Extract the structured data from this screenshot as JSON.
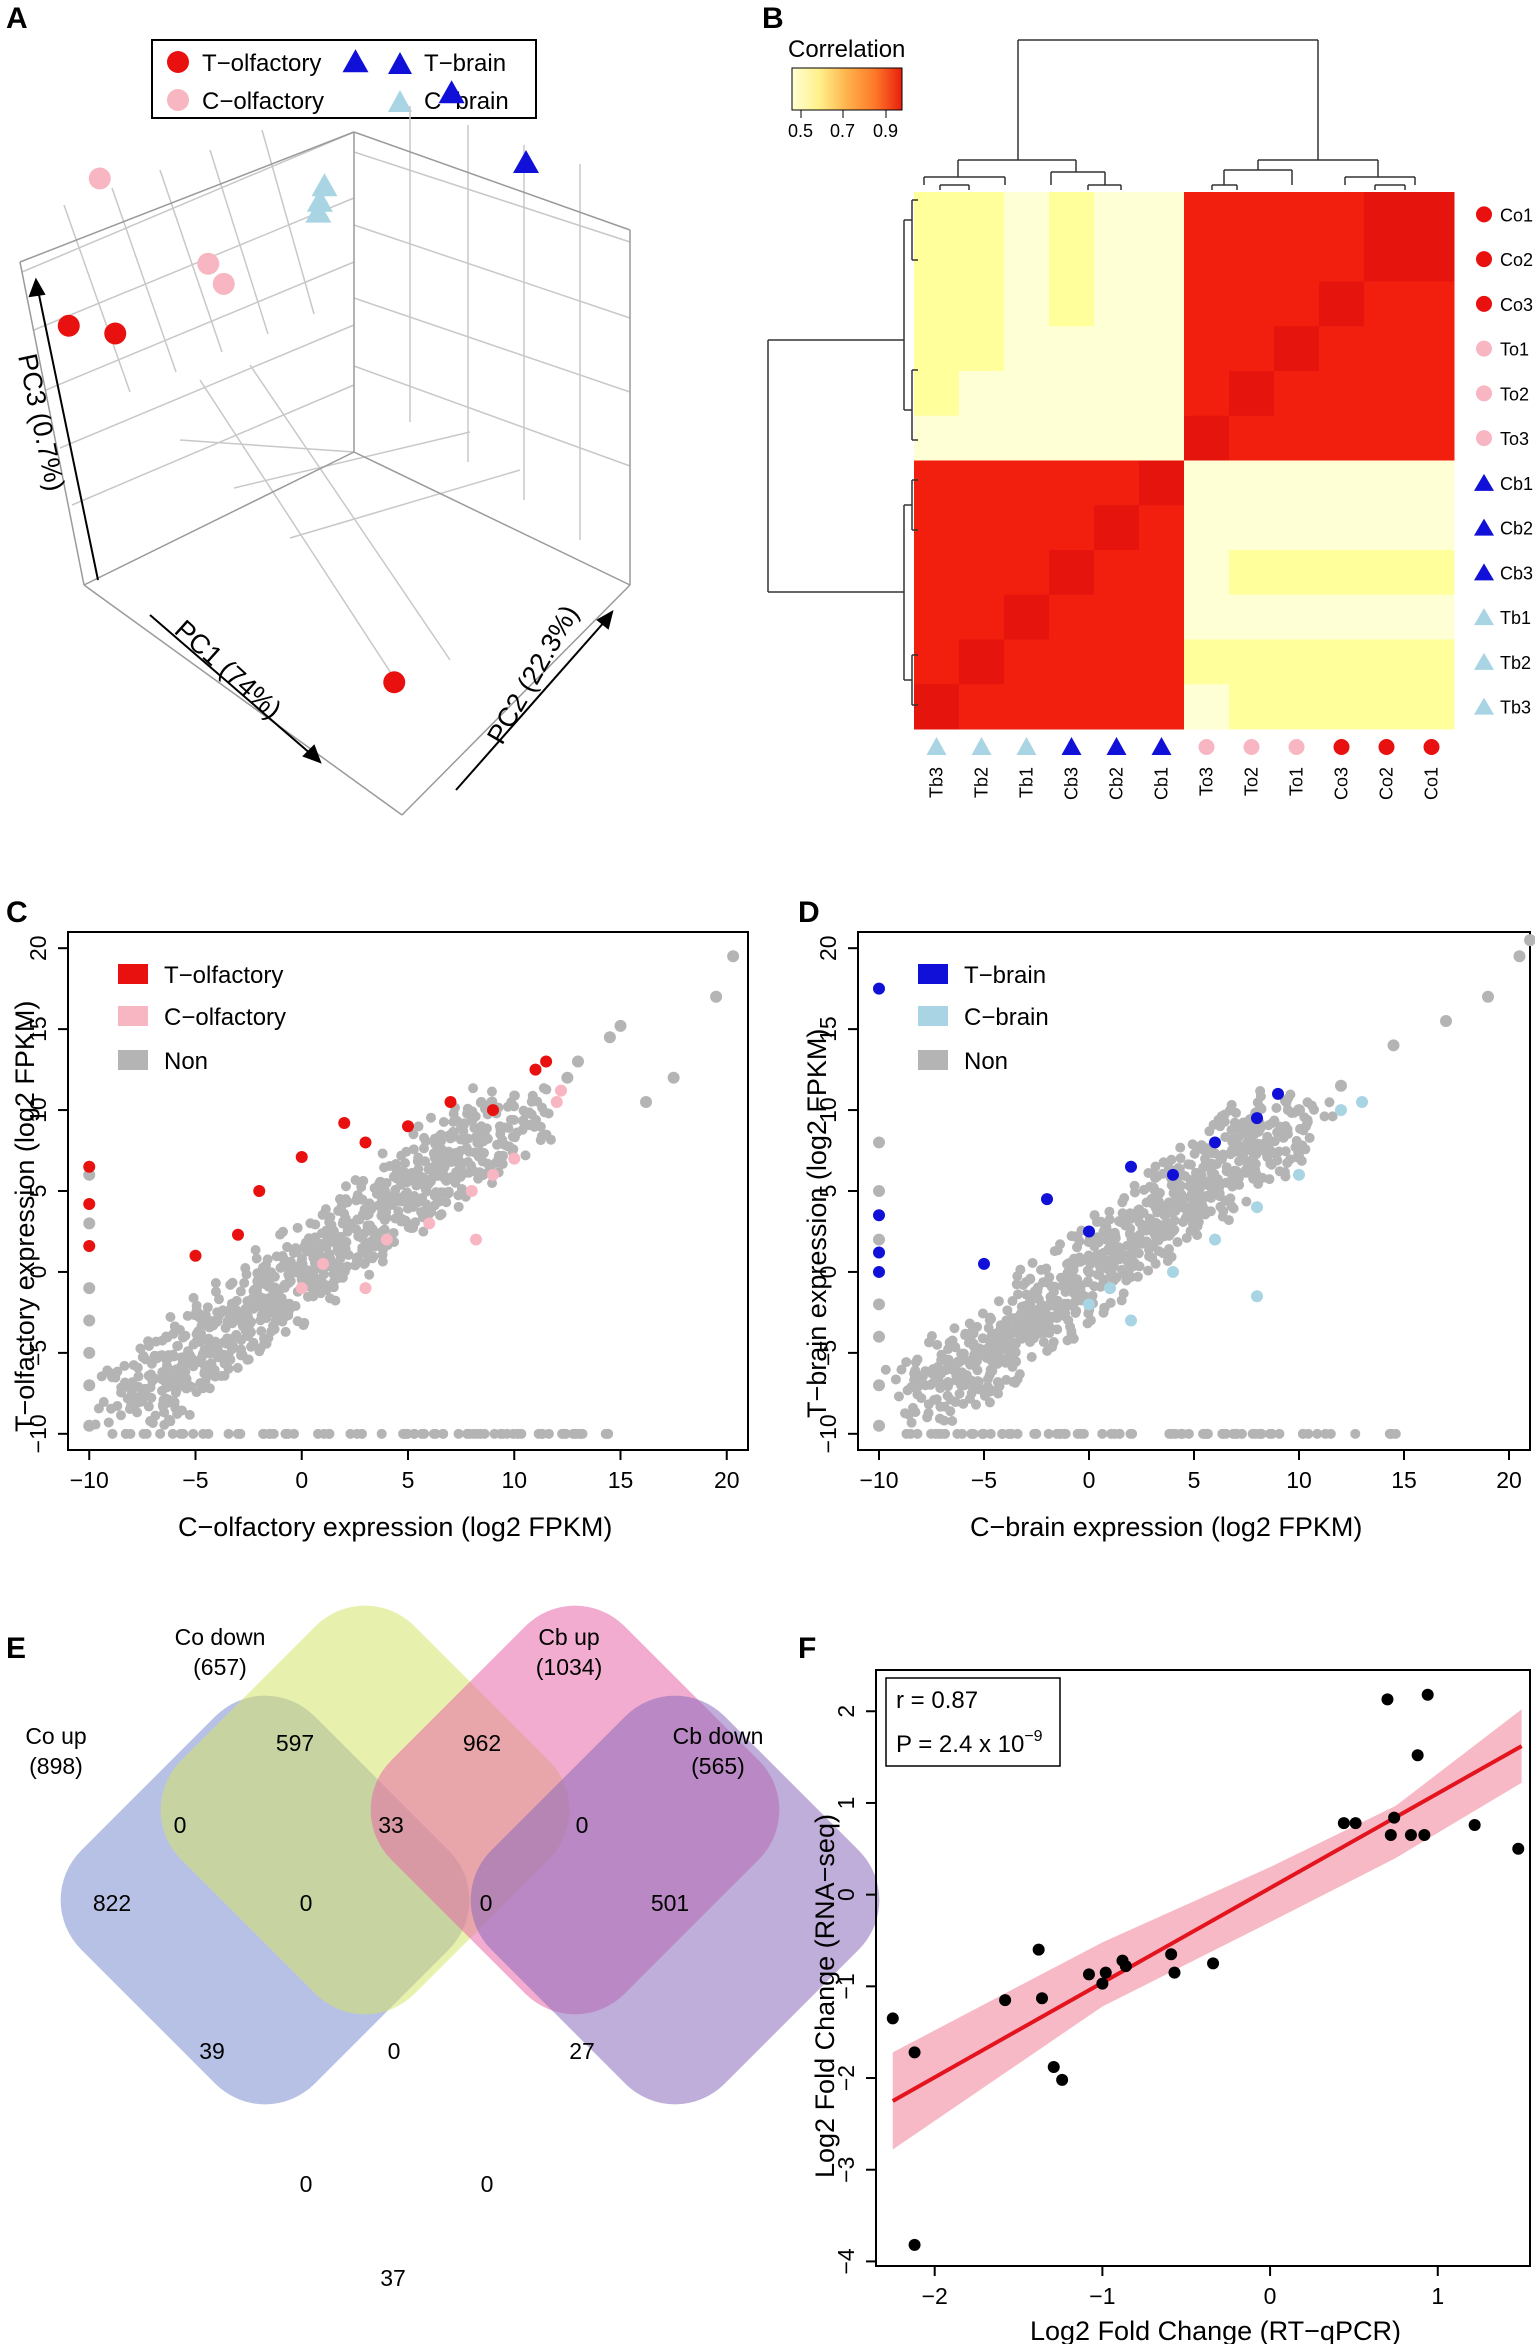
{
  "colors": {
    "t_olfactory": "#e8110f",
    "c_olfactory": "#f7b6c2",
    "t_brain": "#1010d8",
    "c_brain": "#a8d4e3",
    "non": "#b4b4b4",
    "fit_line": "#e3141e",
    "fit_band": "#f7b9c6"
  },
  "chart_data": [
    {
      "panel": "A",
      "type": "scatter",
      "title": "",
      "axes": [
        "PC1 (74%)",
        "PC2 (22.3%)",
        "PC3 (0.7%)"
      ],
      "legend": [
        {
          "label": "T−olfactory",
          "color": "#e8110f",
          "marker": "circle"
        },
        {
          "label": "C−olfactory",
          "color": "#f7b6c2",
          "marker": "circle"
        },
        {
          "label": "T−brain",
          "color": "#1010d8",
          "marker": "triangle"
        },
        {
          "label": "C−brain",
          "color": "#a8d4e3",
          "marker": "triangle"
        }
      ],
      "legend_position": "top",
      "series": [
        {
          "name": "T−olfactory",
          "projected_points": [
            [
              -1.75,
              0.35
            ],
            [
              -1.45,
              0.3
            ],
            [
              0.35,
              -1.95
            ]
          ]
        },
        {
          "name": "C−olfactory",
          "projected_points": [
            [
              -1.55,
              1.3
            ],
            [
              -0.85,
              0.75
            ],
            [
              -0.75,
              0.62
            ]
          ]
        },
        {
          "name": "T−brain",
          "projected_points": [
            [
              0.1,
              2.05
            ],
            [
              0.72,
              1.85
            ],
            [
              1.2,
              1.4
            ]
          ]
        },
        {
          "name": "C−brain",
          "projected_points": [
            [
              -0.1,
              1.25
            ],
            [
              -0.13,
              1.15
            ],
            [
              -0.14,
              1.08
            ]
          ]
        }
      ]
    },
    {
      "panel": "B",
      "type": "heatmap",
      "title": "Correlation",
      "color_key": {
        "ticks": [
          "0.5",
          "0.7",
          "0.9"
        ],
        "range": [
          0.5,
          0.95
        ],
        "colors": [
          "#ffffd4",
          "#fff08a",
          "#feb24c",
          "#fd7a2a",
          "#e8200c"
        ]
      },
      "rows": [
        {
          "label": "Co1",
          "group": "T−olfactory"
        },
        {
          "label": "Co2",
          "group": "T−olfactory"
        },
        {
          "label": "Co3",
          "group": "T−olfactory"
        },
        {
          "label": "To1",
          "group": "C−olfactory"
        },
        {
          "label": "To2",
          "group": "C−olfactory"
        },
        {
          "label": "To3",
          "group": "C−olfactory"
        },
        {
          "label": "Cb1",
          "group": "T−brain"
        },
        {
          "label": "Cb2",
          "group": "T−brain"
        },
        {
          "label": "Cb3",
          "group": "T−brain"
        },
        {
          "label": "Tb1",
          "group": "C−brain"
        },
        {
          "label": "Tb2",
          "group": "C−brain"
        },
        {
          "label": "Tb3",
          "group": "C−brain"
        }
      ],
      "columns": [
        {
          "label": "Tb3",
          "group": "C−brain"
        },
        {
          "label": "Tb2",
          "group": "C−brain"
        },
        {
          "label": "Tb1",
          "group": "C−brain"
        },
        {
          "label": "Cb3",
          "group": "T−brain"
        },
        {
          "label": "Cb2",
          "group": "T−brain"
        },
        {
          "label": "Cb1",
          "group": "T−brain"
        },
        {
          "label": "To3",
          "group": "C−olfactory"
        },
        {
          "label": "To2",
          "group": "C−olfactory"
        },
        {
          "label": "To1",
          "group": "C−olfactory"
        },
        {
          "label": "Co3",
          "group": "T−olfactory"
        },
        {
          "label": "Co2",
          "group": "T−olfactory"
        },
        {
          "label": "Co1",
          "group": "T−olfactory"
        }
      ],
      "values": [
        [
          0.62,
          0.62,
          0.55,
          0.62,
          0.55,
          0.55,
          0.92,
          0.92,
          0.92,
          0.92,
          0.95,
          0.95
        ],
        [
          0.62,
          0.62,
          0.55,
          0.62,
          0.55,
          0.55,
          0.92,
          0.92,
          0.92,
          0.92,
          0.95,
          0.95
        ],
        [
          0.62,
          0.62,
          0.55,
          0.62,
          0.55,
          0.55,
          0.92,
          0.92,
          0.92,
          0.95,
          0.92,
          0.92
        ],
        [
          0.62,
          0.62,
          0.55,
          0.55,
          0.55,
          0.55,
          0.92,
          0.92,
          0.95,
          0.92,
          0.92,
          0.92
        ],
        [
          0.62,
          0.55,
          0.55,
          0.55,
          0.55,
          0.55,
          0.92,
          0.95,
          0.92,
          0.92,
          0.92,
          0.92
        ],
        [
          0.55,
          0.55,
          0.55,
          0.55,
          0.55,
          0.55,
          0.95,
          0.92,
          0.92,
          0.92,
          0.92,
          0.92
        ],
        [
          0.92,
          0.92,
          0.92,
          0.92,
          0.92,
          0.95,
          0.55,
          0.55,
          0.55,
          0.55,
          0.55,
          0.55
        ],
        [
          0.92,
          0.92,
          0.92,
          0.92,
          0.95,
          0.92,
          0.55,
          0.55,
          0.55,
          0.55,
          0.55,
          0.55
        ],
        [
          0.92,
          0.92,
          0.92,
          0.95,
          0.92,
          0.92,
          0.55,
          0.62,
          0.62,
          0.62,
          0.62,
          0.62
        ],
        [
          0.92,
          0.92,
          0.95,
          0.92,
          0.92,
          0.92,
          0.55,
          0.55,
          0.55,
          0.55,
          0.55,
          0.55
        ],
        [
          0.92,
          0.95,
          0.92,
          0.92,
          0.92,
          0.92,
          0.62,
          0.62,
          0.62,
          0.62,
          0.62,
          0.62
        ],
        [
          0.95,
          0.92,
          0.92,
          0.92,
          0.92,
          0.92,
          0.55,
          0.62,
          0.62,
          0.62,
          0.62,
          0.62
        ]
      ]
    },
    {
      "panel": "C",
      "type": "scatter",
      "xlabel": "C−olfactory expression (log2 FPKM)",
      "ylabel": "T−olfactory expression (log2 FPKM)",
      "xlim": [
        -11,
        21
      ],
      "ylim": [
        -11,
        21
      ],
      "xticks": [
        -10,
        -5,
        0,
        5,
        10,
        15,
        20
      ],
      "yticks": [
        -10,
        -5,
        0,
        5,
        10,
        15,
        20
      ],
      "legend": [
        {
          "label": "T−olfactory",
          "color": "#e8110f"
        },
        {
          "label": "C−olfactory",
          "color": "#f7b6c2"
        },
        {
          "label": "Non",
          "color": "#b4b4b4"
        }
      ],
      "legend_position": "top-left",
      "series": [
        {
          "name": "Non",
          "x": [
            -10,
            -10,
            -10,
            -10,
            -10,
            -10,
            -10,
            16.2,
            17.5,
            19.5,
            20.3,
            12.5,
            13,
            14.5,
            15
          ],
          "y": [
            6,
            3,
            -1,
            -3,
            -5,
            -7,
            -9.5,
            10.5,
            12,
            17,
            19.5,
            12,
            13,
            14.5,
            15.2
          ]
        },
        {
          "name": "T−olfactory",
          "x": [
            -10,
            -10,
            -10,
            -5,
            -3,
            -2,
            0,
            2,
            3,
            5,
            7,
            9,
            11,
            11.5
          ],
          "y": [
            6.5,
            4.2,
            1.6,
            1,
            2.3,
            5,
            7.1,
            9.2,
            8,
            9,
            10.5,
            10,
            12.5,
            13
          ],
          "note": "plus one point at (12.3, 11.2)"
        },
        {
          "name": "C−olfactory",
          "x": [
            0,
            1,
            3,
            4,
            6,
            8,
            9,
            10,
            12,
            12.2,
            8.2
          ],
          "y": [
            -1,
            0.5,
            -1,
            2,
            3,
            5,
            6,
            7,
            10.5,
            11.2,
            2
          ]
        }
      ]
    },
    {
      "panel": "D",
      "type": "scatter",
      "xlabel": "C−brain expression (log2 FPKM)",
      "ylabel": "T−brain expression (log2 FPKM)",
      "xlim": [
        -11,
        21
      ],
      "ylim": [
        -11,
        21
      ],
      "xticks": [
        -10,
        -5,
        0,
        5,
        10,
        15,
        20
      ],
      "yticks": [
        -10,
        -5,
        0,
        5,
        10,
        15,
        20
      ],
      "legend": [
        {
          "label": "T−brain",
          "color": "#1010d8"
        },
        {
          "label": "C−brain",
          "color": "#a8d4e3"
        },
        {
          "label": "Non",
          "color": "#b4b4b4"
        }
      ],
      "legend_position": "top-left",
      "series": [
        {
          "name": "Non",
          "x": [
            -10,
            -10,
            -10,
            -10,
            -10,
            -10,
            -10,
            10,
            14.5,
            17,
            19,
            20.5,
            21,
            12
          ],
          "y": [
            8,
            5,
            2,
            -2,
            -4,
            -7,
            -9.5,
            10,
            14,
            15.5,
            17,
            19.5,
            20.5,
            11.5
          ]
        },
        {
          "name": "T−brain",
          "x": [
            -10,
            -10,
            -10,
            -10,
            -5,
            -2,
            0,
            2,
            4,
            6,
            8,
            9
          ],
          "y": [
            17.5,
            3.5,
            1.2,
            0,
            0.5,
            4.5,
            2.5,
            6.5,
            6,
            8,
            9.5,
            11
          ]
        },
        {
          "name": "C−brain",
          "x": [
            0,
            1,
            2,
            4,
            6,
            8,
            10,
            12,
            13,
            8
          ],
          "y": [
            -2,
            -1,
            -3,
            0,
            2,
            4,
            6,
            10,
            10.5,
            -1.5
          ]
        }
      ]
    },
    {
      "panel": "F",
      "type": "scatter",
      "xlabel": "Log2 Fold Change (RT−qPCR)",
      "ylabel": "Log2 Fold Change (RNA−seq)",
      "xlim": [
        -2.35,
        1.55
      ],
      "ylim": [
        -4.05,
        2.45
      ],
      "xticks": [
        -2,
        -1,
        0,
        1
      ],
      "yticks": [
        -4,
        -3,
        -2,
        -1,
        0,
        1,
        2
      ],
      "annotation": {
        "r": "r  = 0.87",
        "p_prefix": "P = 2.4 x 10",
        "p_exp": "−9"
      },
      "fit": {
        "x": [
          -2.25,
          1.5
        ],
        "y": [
          -2.25,
          1.62
        ]
      },
      "band": {
        "x": [
          -2.25,
          -1.0,
          0.0,
          0.75,
          1.5
        ],
        "upper": [
          -1.72,
          -0.52,
          0.3,
          0.97,
          2.02
        ],
        "lower": [
          -2.78,
          -1.22,
          -0.3,
          0.4,
          1.22
        ]
      },
      "series": [
        {
          "name": "genes",
          "x": [
            -2.25,
            -2.12,
            -2.12,
            -1.58,
            -1.38,
            -1.36,
            -1.29,
            -1.24,
            -1.08,
            -1.0,
            -0.98,
            -0.88,
            -0.86,
            -0.59,
            -0.57,
            -0.34,
            0.44,
            0.51,
            0.7,
            0.72,
            0.74,
            0.84,
            0.88,
            0.92,
            0.94,
            1.22,
            1.48
          ],
          "y": [
            -1.35,
            -1.72,
            -3.82,
            -1.15,
            -0.6,
            -1.13,
            -1.88,
            -2.02,
            -0.87,
            -0.97,
            -0.85,
            -0.72,
            -0.78,
            -0.65,
            -0.85,
            -0.75,
            0.78,
            0.78,
            2.13,
            0.65,
            0.84,
            0.65,
            1.52,
            0.65,
            2.18,
            0.76,
            0.5
          ]
        }
      ]
    }
  ],
  "panels": {
    "a": "A",
    "b": "B",
    "c": "C",
    "d": "D",
    "e": "E",
    "f": "F"
  },
  "venn": {
    "sets": [
      {
        "label": "Co up",
        "count": "(898)",
        "color": "#7b8ed0"
      },
      {
        "label": "Co down",
        "count": "(657)",
        "color": "#d5e36a"
      },
      {
        "label": "Cb up",
        "count": "(1034)",
        "color": "#e868a8"
      },
      {
        "label": "Cb down",
        "count": "(565)",
        "color": "#8c6cbc"
      }
    ],
    "regions": {
      "co_up_only": "822",
      "co_down_only": "597",
      "cb_up_only": "962",
      "cb_down_only": "501",
      "co_up_co_down": "0",
      "co_down_cb_up": "33",
      "cb_up_cb_down": "0",
      "co_up_co_down_cb_up": "0",
      "co_down_cb_up_cb_down": "0",
      "co_up_cb_up": "39",
      "all_four": "0",
      "co_down_cb_down": "27",
      "co_up_cb_up_cb_down": "0",
      "co_up_co_down_cb_down": "0",
      "co_up_cb_down": "37"
    }
  }
}
